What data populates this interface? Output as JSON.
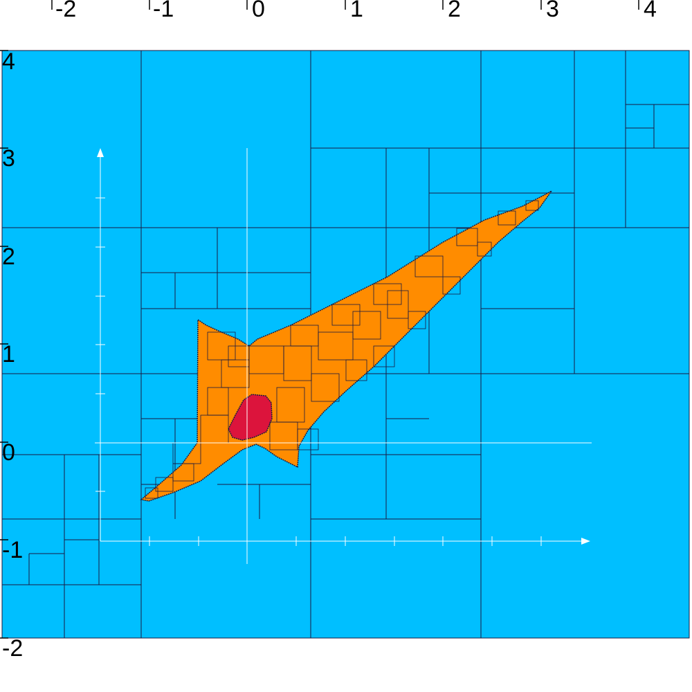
{
  "figure": {
    "top_axis_ticks": [
      "-2",
      "-1",
      "0",
      "1",
      "2",
      "3",
      "4"
    ],
    "left_axis_ticks": [
      "4",
      "3",
      "2",
      "1",
      "0",
      "-1",
      "-2"
    ]
  },
  "colors": {
    "background_boxes": "#00bfff",
    "boundary_region": "#ff8c00",
    "inner_region": "#dc143c",
    "grid_lines": "#1a1a40",
    "overlay_axes": "#ffffff",
    "page_background": "#ffffff"
  }
}
